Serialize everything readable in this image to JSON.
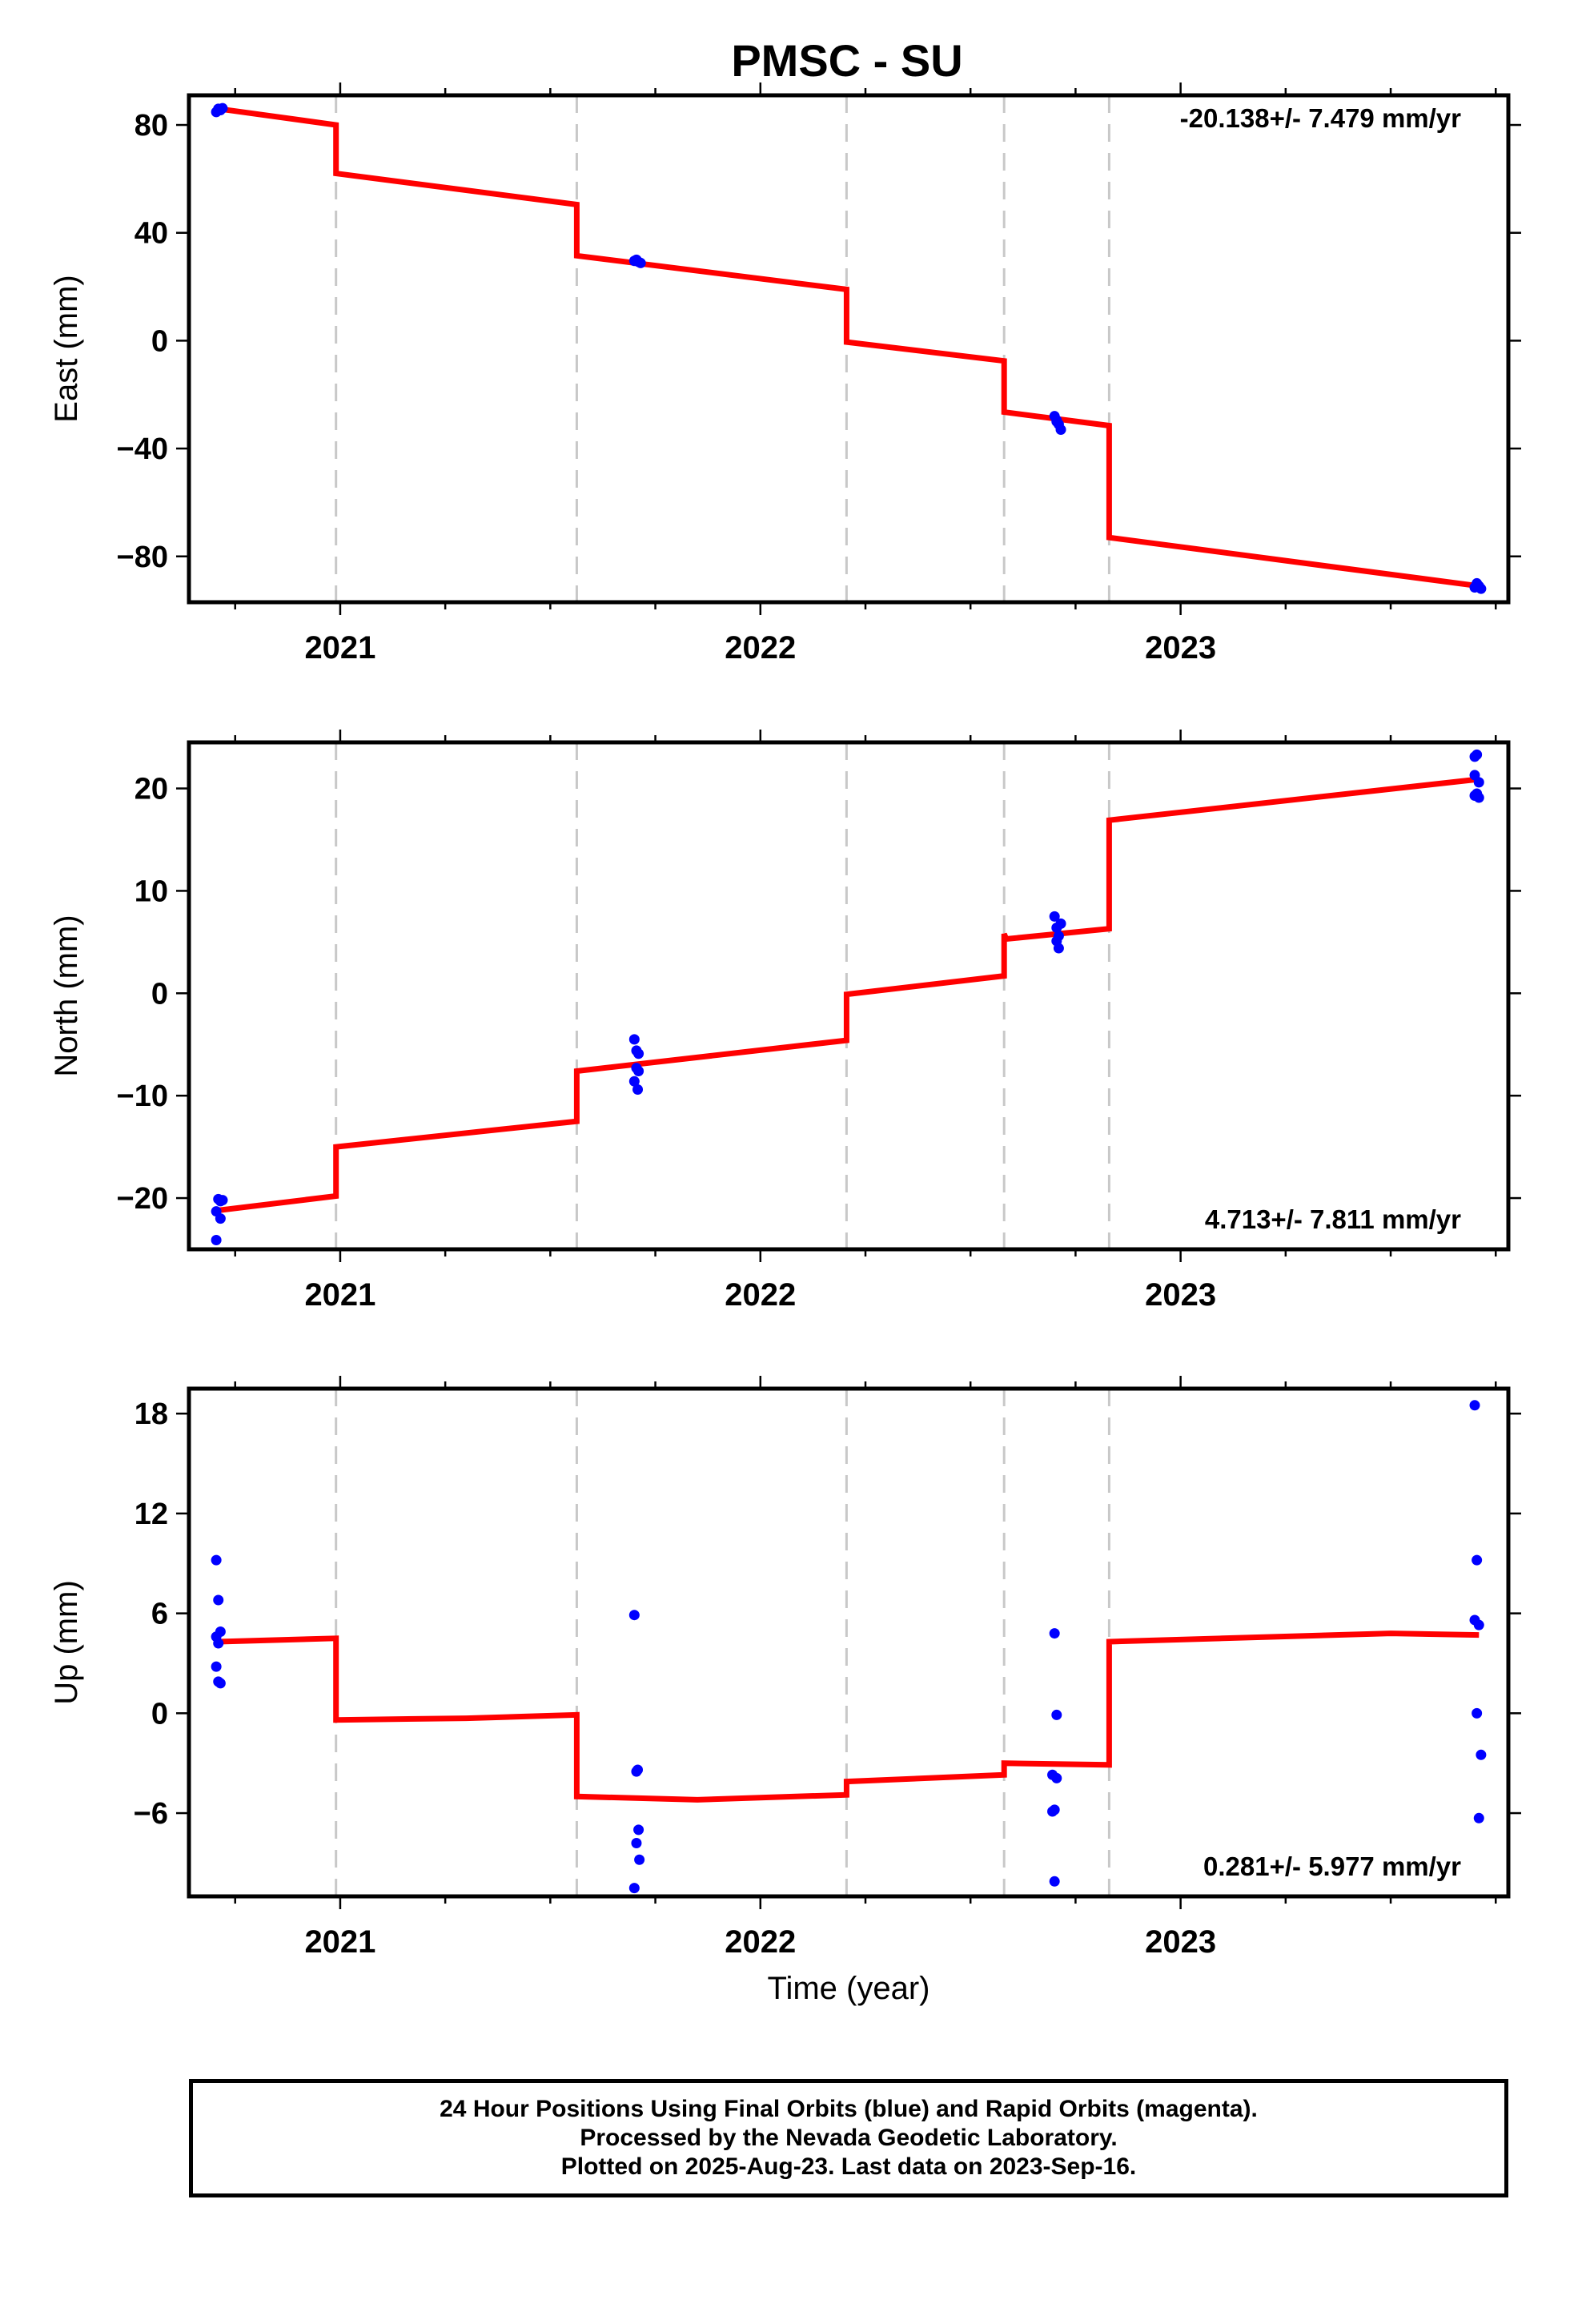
{
  "title": "PMSC - SU",
  "colors": {
    "fit": "#ff0000",
    "final": "#0000ff",
    "rapid": "#ff00ff",
    "grid": "#c8c8c8"
  },
  "footer": {
    "line1": "24 Hour Positions Using Final Orbits (blue) and Rapid Orbits (magenta).",
    "line2": "Processed by the Nevada Geodetic Laboratory.",
    "line3": "Plotted on 2025-Aug-23. Last data on 2023-Sep-16."
  },
  "chart_data": [
    {
      "type": "scatter",
      "ylabel": "East (mm)",
      "rate": "-20.138+/- 7.479 mm/yr",
      "xlim": [
        2020.64,
        2023.78
      ],
      "ylim": [
        -97,
        91
      ],
      "yticks": [
        80,
        40,
        0,
        -40,
        -80
      ],
      "xticks": [
        2021,
        2022,
        2023
      ],
      "grid": "vertical dashed at offsets",
      "offsets": [
        2020.99,
        2021.563,
        2022.205,
        2022.58,
        2022.83
      ],
      "fit": [
        [
          2020.71,
          86
        ],
        [
          2020.99,
          80
        ],
        [
          2020.99,
          62
        ],
        [
          2021.563,
          50.5
        ],
        [
          2021.563,
          31.5
        ],
        [
          2022.205,
          19
        ],
        [
          2022.205,
          -0.5
        ],
        [
          2022.58,
          -7.5
        ],
        [
          2022.58,
          -26.5
        ],
        [
          2022.83,
          -31.5
        ],
        [
          2022.83,
          -73
        ],
        [
          2023.71,
          -91
        ]
      ],
      "points": [
        [
          2020.71,
          86
        ],
        [
          2020.715,
          85.5
        ],
        [
          2020.72,
          86.2
        ],
        [
          2020.705,
          84.8
        ],
        [
          2021.705,
          30
        ],
        [
          2021.71,
          29.2
        ],
        [
          2021.715,
          28.8
        ],
        [
          2021.7,
          29.6
        ],
        [
          2022.7,
          -28
        ],
        [
          2022.705,
          -29.5
        ],
        [
          2022.71,
          -31
        ],
        [
          2022.715,
          -33
        ],
        [
          2022.705,
          -30
        ],
        [
          2023.705,
          -90
        ],
        [
          2023.71,
          -91
        ],
        [
          2023.715,
          -92
        ],
        [
          2023.7,
          -91.5
        ]
      ]
    },
    {
      "type": "scatter",
      "ylabel": "North (mm)",
      "rate": "4.713+/- 7.811 mm/yr",
      "xlim": [
        2020.64,
        2023.78
      ],
      "ylim": [
        -25,
        24.5
      ],
      "yticks": [
        20,
        10,
        0,
        -10,
        -20
      ],
      "xticks": [
        2021,
        2022,
        2023
      ],
      "grid": "vertical dashed at offsets",
      "offsets": [
        2020.99,
        2021.563,
        2022.205,
        2022.58,
        2022.83
      ],
      "fit": [
        [
          2020.71,
          -21.2
        ],
        [
          2020.99,
          -19.8
        ],
        [
          2020.99,
          -15
        ],
        [
          2021.563,
          -12.5
        ],
        [
          2021.563,
          -7.6
        ],
        [
          2022.205,
          -4.6
        ],
        [
          2022.205,
          -0.1
        ],
        [
          2022.58,
          1.7
        ],
        [
          2022.58,
          5.8
        ],
        [
          2022.585,
          5.3
        ],
        [
          2022.83,
          6.3
        ],
        [
          2022.83,
          16.9
        ],
        [
          2023.71,
          20.9
        ]
      ],
      "points": [
        [
          2020.71,
          -20.1
        ],
        [
          2020.715,
          -20.3
        ],
        [
          2020.72,
          -20.2
        ],
        [
          2020.705,
          -21.3
        ],
        [
          2020.715,
          -22
        ],
        [
          2020.705,
          -24.1
        ],
        [
          2021.7,
          -4.5
        ],
        [
          2021.705,
          -5.6
        ],
        [
          2021.71,
          -5.9
        ],
        [
          2021.705,
          -7.3
        ],
        [
          2021.71,
          -7.6
        ],
        [
          2021.7,
          -8.6
        ],
        [
          2021.708,
          -9.4
        ],
        [
          2022.7,
          7.5
        ],
        [
          2022.705,
          6.4
        ],
        [
          2022.71,
          5.6
        ],
        [
          2022.705,
          5.1
        ],
        [
          2022.71,
          4.4
        ],
        [
          2022.715,
          6.8
        ],
        [
          2023.7,
          23.1
        ],
        [
          2023.705,
          23.3
        ],
        [
          2023.7,
          21.3
        ],
        [
          2023.71,
          20.6
        ],
        [
          2023.705,
          19.5
        ],
        [
          2023.71,
          19.1
        ],
        [
          2023.7,
          19.3
        ]
      ]
    },
    {
      "type": "scatter",
      "ylabel": "Up (mm)",
      "xlabel": "Time (year)",
      "rate": "0.281+/- 5.977 mm/yr",
      "xlim": [
        2020.64,
        2023.78
      ],
      "ylim": [
        -11,
        19.5
      ],
      "yticks": [
        18,
        12,
        6,
        0,
        -6
      ],
      "xticks": [
        2021,
        2022,
        2023
      ],
      "grid": "vertical dashed at offsets",
      "offsets": [
        2020.99,
        2021.563,
        2022.205,
        2022.58,
        2022.83
      ],
      "fit": [
        [
          2020.71,
          4.3
        ],
        [
          2020.99,
          4.5
        ],
        [
          2020.99,
          -0.4
        ],
        [
          2021.3,
          -0.3
        ],
        [
          2021.563,
          -0.1
        ],
        [
          2021.563,
          -5
        ],
        [
          2021.85,
          -5.2
        ],
        [
          2022.205,
          -4.9
        ],
        [
          2022.205,
          -4.1
        ],
        [
          2022.58,
          -3.7
        ],
        [
          2022.58,
          -3
        ],
        [
          2022.83,
          -3.1
        ],
        [
          2022.83,
          4.3
        ],
        [
          2023.1,
          4.5
        ],
        [
          2023.5,
          4.8
        ],
        [
          2023.71,
          4.7
        ]
      ],
      "points": [
        [
          2020.705,
          9.2
        ],
        [
          2020.71,
          6.8
        ],
        [
          2020.715,
          4.9
        ],
        [
          2020.705,
          4.6
        ],
        [
          2020.71,
          4.2
        ],
        [
          2020.705,
          2.8
        ],
        [
          2020.71,
          1.9
        ],
        [
          2020.715,
          1.8
        ],
        [
          2021.7,
          5.9
        ],
        [
          2021.705,
          -3.5
        ],
        [
          2021.708,
          -3.4
        ],
        [
          2021.71,
          -7
        ],
        [
          2021.705,
          -7.8
        ],
        [
          2021.712,
          -8.8
        ],
        [
          2021.7,
          -10.5
        ],
        [
          2022.7,
          4.8
        ],
        [
          2022.705,
          -0.1
        ],
        [
          2022.695,
          -3.7
        ],
        [
          2022.705,
          -3.9
        ],
        [
          2022.7,
          -5.8
        ],
        [
          2022.695,
          -5.9
        ],
        [
          2022.7,
          -10.1
        ],
        [
          2023.7,
          18.5
        ],
        [
          2023.705,
          9.2
        ],
        [
          2023.7,
          5.6
        ],
        [
          2023.71,
          5.3
        ],
        [
          2023.705,
          0
        ],
        [
          2023.715,
          -2.5
        ],
        [
          2023.71,
          -6.3
        ]
      ]
    }
  ]
}
